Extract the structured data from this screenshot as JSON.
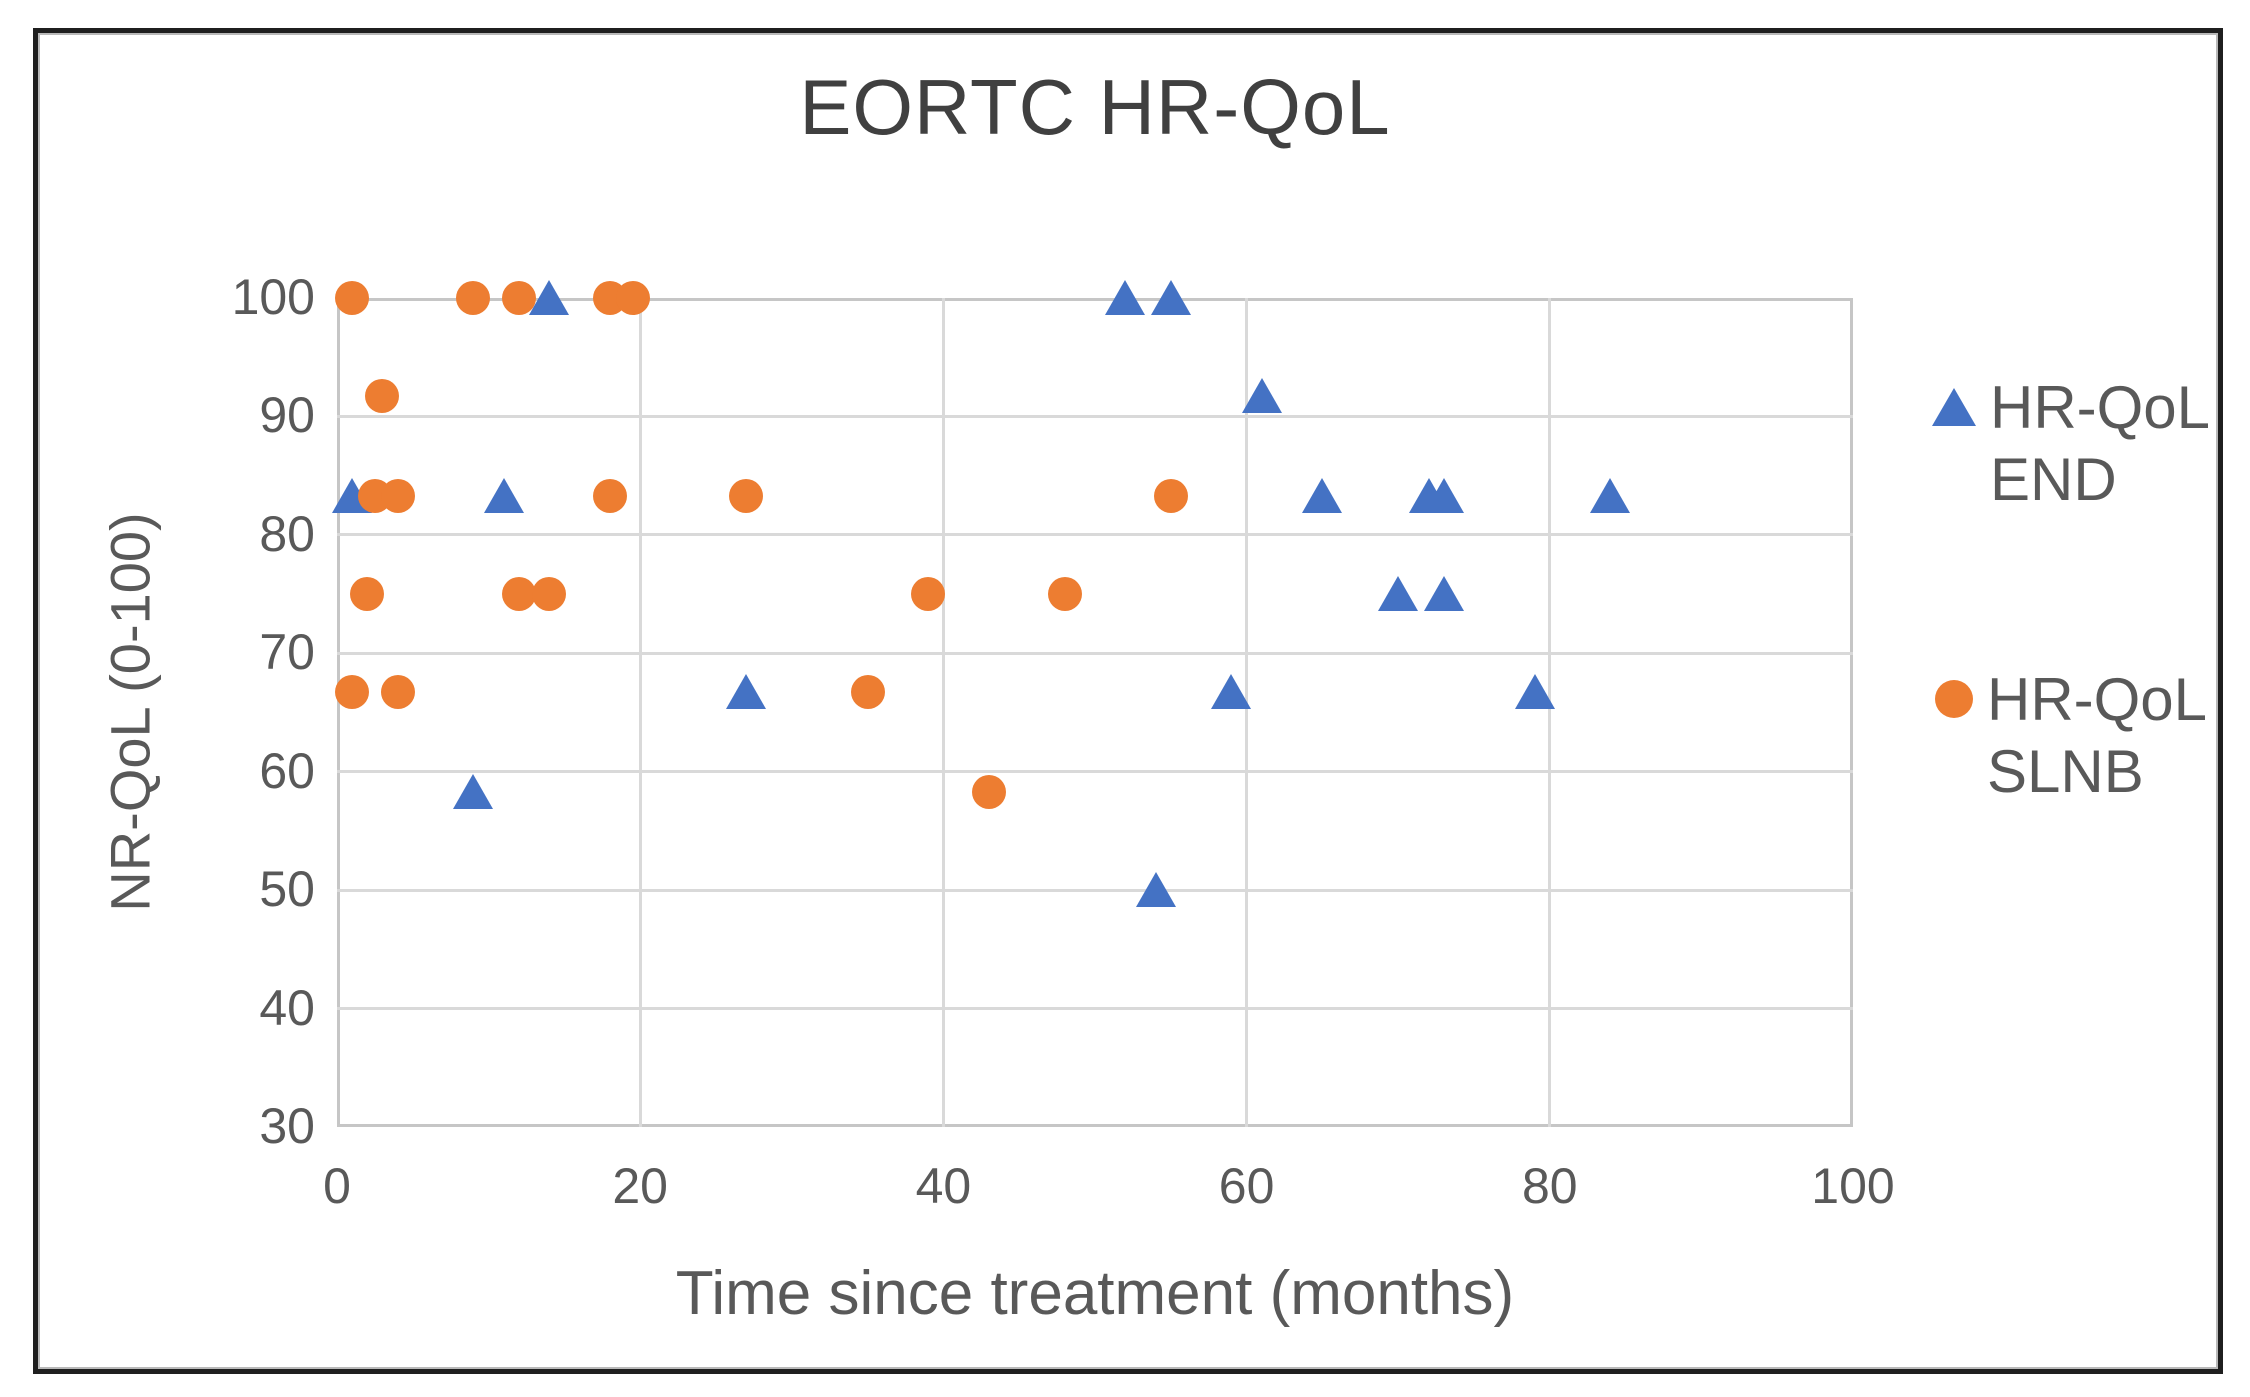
{
  "title": "EORTC HR-QoL",
  "colors": {
    "end_blue": "#4472C4",
    "slnb_orange": "#ED7D31",
    "gridline_gray": "#D9D9D9",
    "axis_text_gray": "#595959",
    "title_gray": "#404040",
    "frame_border": "#1F1F1F"
  },
  "chart_data": {
    "type": "scatter",
    "title": "EORTC HR-QoL",
    "xlabel": "Time since treatment (months)",
    "ylabel": "NR-QoL (0-100)",
    "xlim": [
      0,
      100
    ],
    "ylim": [
      30,
      100
    ],
    "x_ticks": [
      0,
      20,
      40,
      60,
      80,
      100
    ],
    "y_ticks": [
      100,
      90,
      80,
      70,
      60,
      50,
      40,
      30
    ],
    "grid": true,
    "legend_position": "right",
    "series": [
      {
        "name": "HR-QoL END",
        "marker": "triangle",
        "color": "#4472C4",
        "points": [
          [
            14,
            100
          ],
          [
            52,
            100
          ],
          [
            55,
            100
          ],
          [
            61,
            91.7
          ],
          [
            1,
            83.3
          ],
          [
            11,
            83.3
          ],
          [
            65,
            83.3
          ],
          [
            72,
            83.3
          ],
          [
            73,
            83.3
          ],
          [
            84,
            83.3
          ],
          [
            70,
            75
          ],
          [
            73,
            75
          ],
          [
            27,
            66.7
          ],
          [
            59,
            66.7
          ],
          [
            79,
            66.7
          ],
          [
            9,
            58.3
          ],
          [
            54,
            50
          ]
        ]
      },
      {
        "name": "HR-QoL SLNB",
        "marker": "circle",
        "color": "#ED7D31",
        "points": [
          [
            1,
            100
          ],
          [
            9,
            100
          ],
          [
            12,
            100
          ],
          [
            18,
            100
          ],
          [
            19.5,
            100
          ],
          [
            3,
            91.7
          ],
          [
            2.5,
            83.3
          ],
          [
            4,
            83.3
          ],
          [
            18,
            83.3
          ],
          [
            27,
            83.3
          ],
          [
            55,
            83.3
          ],
          [
            2,
            75
          ],
          [
            12,
            75
          ],
          [
            14,
            75
          ],
          [
            39,
            75
          ],
          [
            48,
            75
          ],
          [
            1,
            66.7
          ],
          [
            4,
            66.7
          ],
          [
            35,
            66.7
          ],
          [
            43,
            58.3
          ]
        ]
      }
    ]
  },
  "legend": {
    "entries": [
      {
        "line1": "HR-QoL",
        "line2": "END",
        "marker": "triangle-icon",
        "color": "#4472C4"
      },
      {
        "line1": "HR-QoL",
        "line2": "SLNB",
        "marker": "circle-icon",
        "color": "#ED7D31"
      }
    ]
  }
}
